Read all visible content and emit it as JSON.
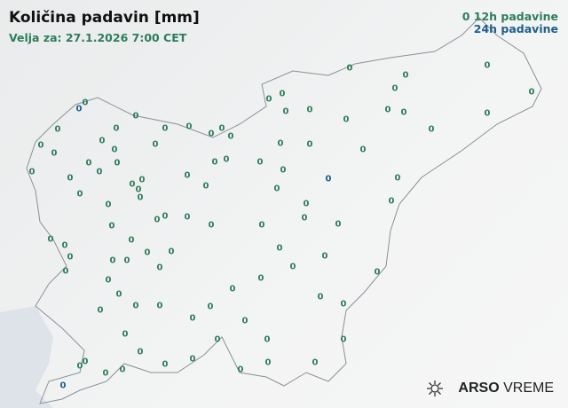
{
  "title": "Količina padavin [mm]",
  "valid_for": "Velja za: 27.1.2026 7:00 CET",
  "legend": {
    "h12_symbol": "0",
    "h12": "12h padavine",
    "h24": "24h padavine"
  },
  "colors": {
    "h12": "#2e7d5b",
    "h24": "#1f5e8c",
    "border": "#8a9099",
    "sea": "#dde3e8"
  },
  "stations_12h_value": "0",
  "stations_24h_value": "0",
  "logo": {
    "brand": "ARSO",
    "product": "VREME",
    "icon": "sun-cloud-icon"
  }
}
